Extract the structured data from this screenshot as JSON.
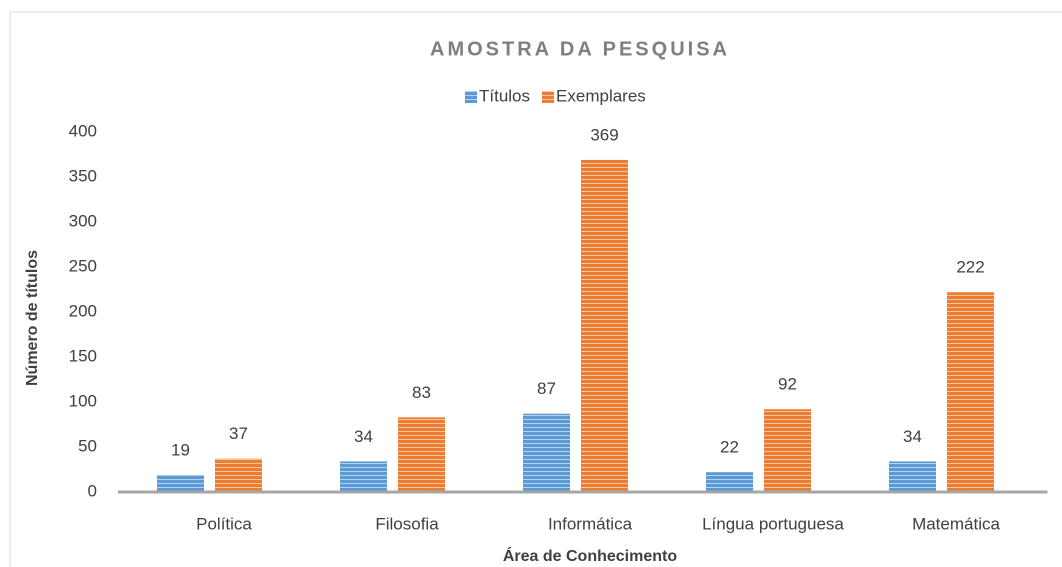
{
  "chart_data": {
    "type": "bar",
    "title": "AMOSTRA DA PESQUISA",
    "x_label": "Área de Conhecimento",
    "y_label": "Número de títulos",
    "categories": [
      "Política",
      "Filosofia",
      "Informática",
      "Língua portuguesa",
      "Matemática"
    ],
    "series": [
      {
        "name": "Títulos",
        "color": "#5b9bd5",
        "values": [
          19,
          34,
          87,
          22,
          34
        ]
      },
      {
        "name": "Exemplares",
        "color": "#ed7d31",
        "values": [
          37,
          83,
          369,
          92,
          222
        ]
      }
    ],
    "ylim": [
      0,
      400
    ],
    "yticks": [
      0,
      50,
      100,
      150,
      200,
      250,
      300,
      350,
      400
    ],
    "legend": "top",
    "grid": false
  }
}
